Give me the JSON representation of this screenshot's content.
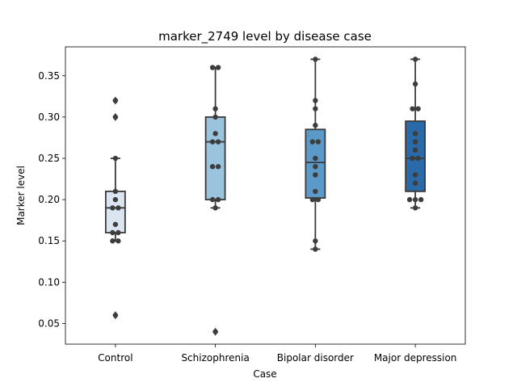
{
  "chart_data": {
    "type": "box",
    "title": "marker_2749 level by disease case",
    "xlabel": "Case",
    "ylabel": "Marker level",
    "categories": [
      "Control",
      "Schizophrenia",
      "Bipolar disorder",
      "Major depression"
    ],
    "ylim": [
      0.025,
      0.385
    ],
    "yticks": [
      0.05,
      0.1,
      0.15,
      0.2,
      0.25,
      0.3,
      0.35
    ],
    "ytick_labels": [
      "0.05",
      "0.10",
      "0.15",
      "0.20",
      "0.25",
      "0.30",
      "0.35"
    ],
    "grid": false,
    "legend": "none",
    "groups": [
      {
        "category": "Control",
        "color": "#dbe5f1",
        "box": {
          "q1": 0.16,
          "median": 0.19,
          "q3": 0.21,
          "whisker_low": 0.15,
          "whisker_high": 0.25
        },
        "outliers": [
          0.06,
          0.3,
          0.32
        ],
        "points": [
          0.32,
          0.3,
          0.25,
          0.21,
          0.2,
          0.19,
          0.19,
          0.17,
          0.16,
          0.16,
          0.15,
          0.15,
          0.06
        ]
      },
      {
        "category": "Schizophrenia",
        "color": "#9ac3dd",
        "box": {
          "q1": 0.2,
          "median": 0.27,
          "q3": 0.3,
          "whisker_low": 0.19,
          "whisker_high": 0.36
        },
        "outliers": [
          0.04
        ],
        "points": [
          0.36,
          0.36,
          0.31,
          0.3,
          0.28,
          0.27,
          0.27,
          0.24,
          0.24,
          0.2,
          0.2,
          0.19,
          0.04
        ]
      },
      {
        "category": "Bipolar disorder",
        "color": "#5b9ac8",
        "box": {
          "q1": 0.202,
          "median": 0.245,
          "q3": 0.285,
          "whisker_low": 0.14,
          "whisker_high": 0.37
        },
        "outliers": [],
        "points": [
          0.37,
          0.32,
          0.31,
          0.29,
          0.27,
          0.27,
          0.25,
          0.24,
          0.23,
          0.21,
          0.2,
          0.2,
          0.15,
          0.14
        ]
      },
      {
        "category": "Major depression",
        "color": "#2a6aa8",
        "box": {
          "q1": 0.21,
          "median": 0.25,
          "q3": 0.295,
          "whisker_low": 0.19,
          "whisker_high": 0.37
        },
        "outliers": [],
        "points": [
          0.37,
          0.34,
          0.31,
          0.31,
          0.28,
          0.27,
          0.26,
          0.25,
          0.25,
          0.23,
          0.22,
          0.2,
          0.2,
          0.2,
          0.19
        ]
      }
    ]
  }
}
